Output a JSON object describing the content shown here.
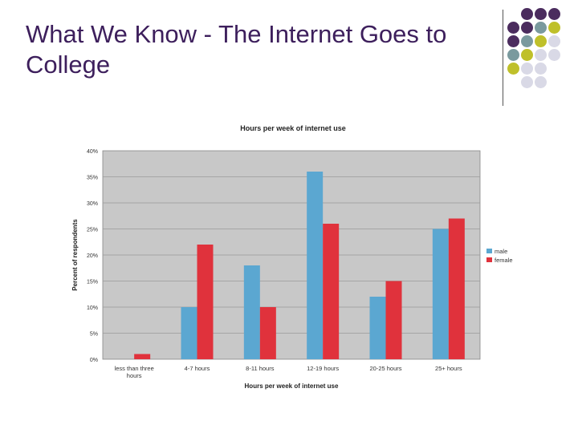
{
  "slide": {
    "title": "What We Know - The Internet Goes to College"
  },
  "decoration": {
    "dot_colors": [
      "#4b2c5e",
      "#7a9a9e",
      "#bfc02a",
      "#d9d9e6"
    ]
  },
  "chart_data": {
    "type": "bar",
    "title": "Hours per week of internet use",
    "xlabel": "Hours per week of internet use",
    "ylabel": "Percent of respondents",
    "categories": [
      "less than three hours",
      "4-7 hours",
      "8-11 hours",
      "12-19 hours",
      "20-25 hours",
      "25+ hours"
    ],
    "category_labels": [
      [
        "less than three",
        "hours"
      ],
      [
        "4-7 hours"
      ],
      [
        "8-11 hours"
      ],
      [
        "12-19 hours"
      ],
      [
        "20-25 hours"
      ],
      [
        "25+ hours"
      ]
    ],
    "series": [
      {
        "name": "male",
        "color": "#5ba7d1",
        "values": [
          0,
          10,
          18,
          36,
          12,
          25
        ]
      },
      {
        "name": "female",
        "color": "#e0323c",
        "values": [
          1,
          22,
          10,
          26,
          15,
          27
        ]
      }
    ],
    "ylim": [
      0,
      40
    ],
    "yticks": [
      0,
      5,
      10,
      15,
      20,
      25,
      30,
      35,
      40
    ],
    "ytick_labels": [
      "0%",
      "5%",
      "10%",
      "15%",
      "20%",
      "25%",
      "30%",
      "35%",
      "40%"
    ],
    "grid": true,
    "plot_background": "#c8c8c8",
    "legend_position": "right"
  }
}
